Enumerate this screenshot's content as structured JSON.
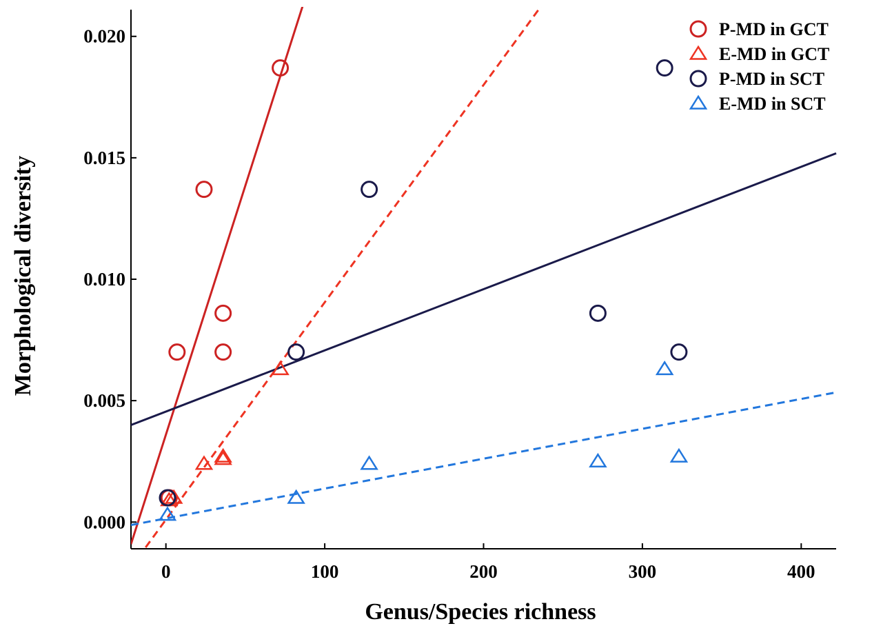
{
  "chart_data": {
    "type": "scatter",
    "xlabel": "Genus/Species richness",
    "ylabel": "Morphological diversity",
    "xlim": [
      -22,
      422
    ],
    "ylim": [
      -0.0011,
      0.0211
    ],
    "xticks": [
      0,
      100,
      200,
      300,
      400
    ],
    "xtick_labels": [
      "0",
      "100",
      "200",
      "300",
      "400"
    ],
    "yticks": [
      0.0,
      0.005,
      0.01,
      0.015,
      0.02
    ],
    "ytick_labels": [
      "0.000",
      "0.005",
      "0.010",
      "0.015",
      "0.020"
    ],
    "grid": false,
    "legend_position": "top-right",
    "series": [
      {
        "name": "P-MD in GCT",
        "marker": "circle",
        "color": "#cc2222",
        "points": [
          [
            2,
            0.001
          ],
          [
            7,
            0.007
          ],
          [
            24,
            0.0137
          ],
          [
            36,
            0.0086
          ],
          [
            36,
            0.007
          ],
          [
            72,
            0.0187
          ]
        ],
        "fit": {
          "slope": 0.000205,
          "intercept": 0.0036,
          "style": "solid"
        }
      },
      {
        "name": "E-MD in GCT",
        "marker": "triangle",
        "color": "#ee3322",
        "points": [
          [
            2,
            0.0009
          ],
          [
            5,
            0.001
          ],
          [
            24,
            0.0024
          ],
          [
            36,
            0.0027
          ],
          [
            36,
            0.0026
          ],
          [
            72,
            0.0063
          ]
        ],
        "fit": {
          "slope": 8.95e-05,
          "intercept": 0.0001,
          "style": "dashed"
        }
      },
      {
        "name": "P-MD in SCT",
        "marker": "circle",
        "color": "#1a1a4a",
        "points": [
          [
            1,
            0.001
          ],
          [
            82,
            0.007
          ],
          [
            128,
            0.0137
          ],
          [
            272,
            0.0086
          ],
          [
            314,
            0.0187
          ],
          [
            323,
            0.007
          ]
        ],
        "fit": {
          "slope": 2.52e-05,
          "intercept": 0.00455,
          "style": "solid"
        }
      },
      {
        "name": "E-MD in SCT",
        "marker": "triangle",
        "color": "#2277dd",
        "points": [
          [
            1,
            0.0003
          ],
          [
            82,
            0.001
          ],
          [
            128,
            0.0024
          ],
          [
            272,
            0.0025
          ],
          [
            314,
            0.0063
          ],
          [
            323,
            0.0027
          ]
        ],
        "fit": {
          "slope": 1.23e-05,
          "intercept": 0.00015,
          "style": "dashed"
        }
      }
    ]
  }
}
